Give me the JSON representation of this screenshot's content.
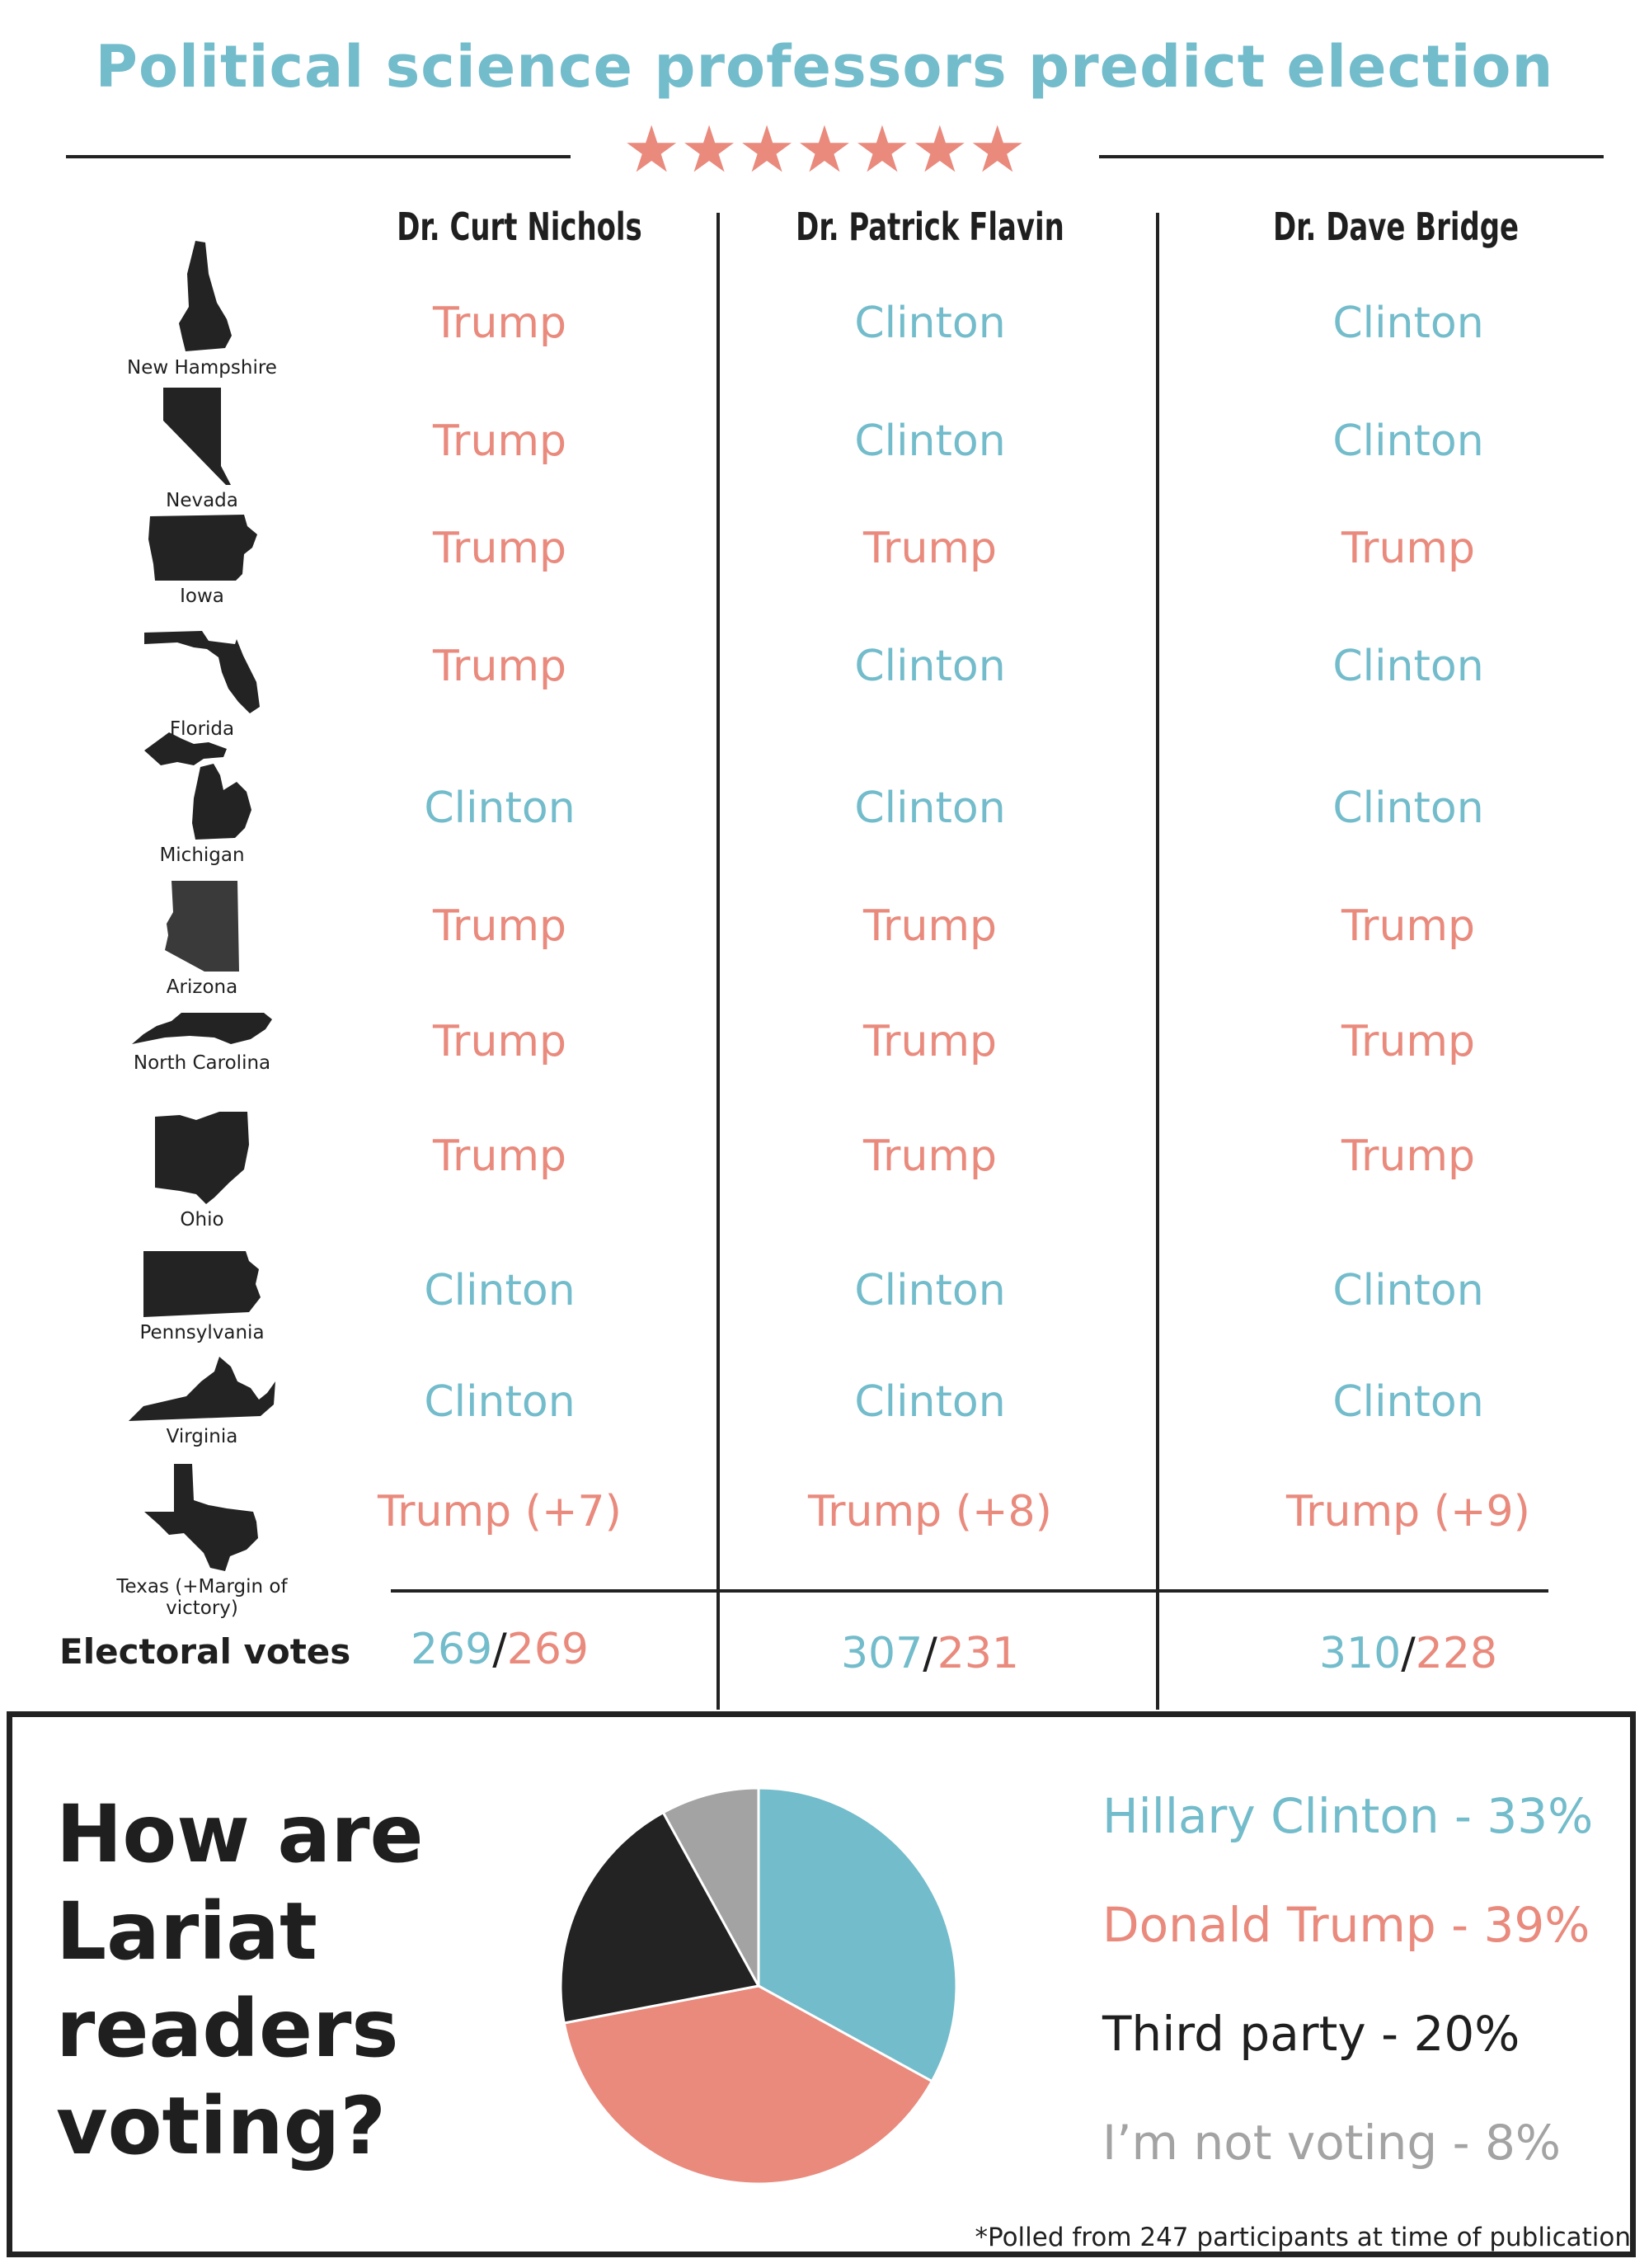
{
  "title": "Political science professors predict election",
  "stars": "★★★★★★★",
  "professors": [
    "Dr. Curt Nichols",
    "Dr. Patrick Flavin",
    "Dr. Dave Bridge"
  ],
  "states": [
    {
      "name": "New Hampshire",
      "picks": [
        "Trump",
        "Clinton",
        "Clinton"
      ]
    },
    {
      "name": "Nevada",
      "picks": [
        "Trump",
        "Clinton",
        "Clinton"
      ]
    },
    {
      "name": "Iowa",
      "picks": [
        "Trump",
        "Trump",
        "Trump"
      ]
    },
    {
      "name": "Florida",
      "picks": [
        "Trump",
        "Clinton",
        "Clinton"
      ]
    },
    {
      "name": "Michigan",
      "picks": [
        "Clinton",
        "Clinton",
        "Clinton"
      ]
    },
    {
      "name": "Arizona",
      "picks": [
        "Trump",
        "Trump",
        "Trump"
      ]
    },
    {
      "name": "North Carolina",
      "picks": [
        "Trump",
        "Trump",
        "Trump"
      ]
    },
    {
      "name": "Ohio",
      "picks": [
        "Trump",
        "Trump",
        "Trump"
      ]
    },
    {
      "name": "Pennsylvania",
      "picks": [
        "Clinton",
        "Clinton",
        "Clinton"
      ]
    },
    {
      "name": "Virginia",
      "picks": [
        "Clinton",
        "Clinton",
        "Clinton"
      ]
    },
    {
      "name": "Texas (+Margin of victory)",
      "picks": [
        "Trump (+7)",
        "Trump (+8)",
        "Trump (+9)"
      ]
    }
  ],
  "electoral": {
    "label": "Electoral votes",
    "results": [
      {
        "clinton": "269",
        "trump": "269"
      },
      {
        "clinton": "307",
        "trump": "231"
      },
      {
        "clinton": "310",
        "trump": "228"
      }
    ]
  },
  "colors": {
    "clinton": "#73bccb",
    "trump": "#e98a7d",
    "third": "#232323",
    "not_voting": "#a3a3a3"
  },
  "poll": {
    "question": "How are Lariat readers voting?",
    "footnote": "*Polled from 247 participants at time of publication",
    "legend": [
      "Hillary Clinton - 33%",
      "Donald Trump - 39%",
      "Third party - 20%",
      "I’m not voting - 8%"
    ]
  },
  "chart_data": {
    "type": "pie",
    "categories": [
      "Hillary Clinton",
      "Donald Trump",
      "Third party",
      "I’m not voting"
    ],
    "values": [
      33,
      39,
      20,
      8
    ],
    "colors": [
      "#73bccb",
      "#e98a7d",
      "#232323",
      "#a3a3a3"
    ]
  }
}
